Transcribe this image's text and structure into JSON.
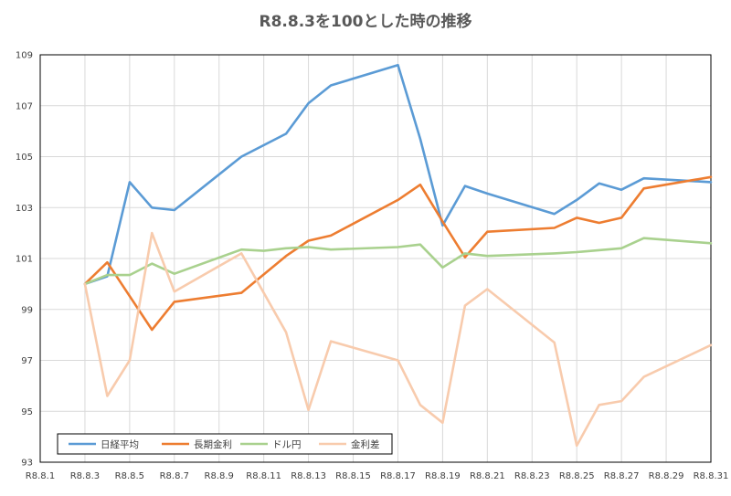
{
  "chart_data": {
    "type": "line",
    "title": "R8.8.3を100とした時の推移",
    "xlabel": "",
    "ylabel": "",
    "ylim": [
      93,
      109
    ],
    "yticks": [
      93,
      95,
      97,
      99,
      101,
      103,
      105,
      107,
      109
    ],
    "xlim": [
      1,
      31
    ],
    "xticks": [
      {
        "x": 1,
        "label": "R8.8.1"
      },
      {
        "x": 3,
        "label": "R8.8.3"
      },
      {
        "x": 5,
        "label": "R8.8.5"
      },
      {
        "x": 7,
        "label": "R8.8.7"
      },
      {
        "x": 9,
        "label": "R8.8.9"
      },
      {
        "x": 11,
        "label": "R8.8.11"
      },
      {
        "x": 13,
        "label": "R8.8.13"
      },
      {
        "x": 15,
        "label": "R8.8.15"
      },
      {
        "x": 17,
        "label": "R8.8.17"
      },
      {
        "x": 19,
        "label": "R8.8.19"
      },
      {
        "x": 21,
        "label": "R8.8.21"
      },
      {
        "x": 23,
        "label": "R8.8.23"
      },
      {
        "x": 25,
        "label": "R8.8.25"
      },
      {
        "x": 27,
        "label": "R8.8.27"
      },
      {
        "x": 29,
        "label": "R8.8.29"
      },
      {
        "x": 31,
        "label": "R8.8.31"
      }
    ],
    "grid": true,
    "legend_position": "bottom-left",
    "series": [
      {
        "name": "日経平均",
        "color": "#5b9bd5",
        "points": [
          [
            3,
            100
          ],
          [
            4,
            100.3
          ],
          [
            5,
            104
          ],
          [
            6,
            103
          ],
          [
            7,
            102.9
          ],
          [
            10,
            105
          ],
          [
            12,
            105.9
          ],
          [
            13,
            107.1
          ],
          [
            14,
            107.8
          ],
          [
            17,
            108.6
          ],
          [
            18,
            105.7
          ],
          [
            19,
            102.3
          ],
          [
            20,
            103.85
          ],
          [
            21,
            103.55
          ],
          [
            24,
            102.75
          ],
          [
            25,
            103.3
          ],
          [
            26,
            103.95
          ],
          [
            27,
            103.7
          ],
          [
            28,
            104.15
          ],
          [
            31,
            104
          ]
        ]
      },
      {
        "name": "長期金利",
        "color": "#ed7d31",
        "points": [
          [
            3,
            100
          ],
          [
            4,
            100.85
          ],
          [
            6,
            98.2
          ],
          [
            7,
            99.3
          ],
          [
            10,
            99.65
          ],
          [
            12,
            101.1
          ],
          [
            13,
            101.7
          ],
          [
            14,
            101.9
          ],
          [
            17,
            103.3
          ],
          [
            18,
            103.9
          ],
          [
            19,
            102.45
          ],
          [
            20,
            101.05
          ],
          [
            21,
            102.05
          ],
          [
            24,
            102.2
          ],
          [
            25,
            102.6
          ],
          [
            26,
            102.4
          ],
          [
            27,
            102.6
          ],
          [
            28,
            103.75
          ],
          [
            31,
            104.2
          ]
        ]
      },
      {
        "name": "ドル円",
        "color": "#a9d18e",
        "points": [
          [
            3,
            100
          ],
          [
            4,
            100.35
          ],
          [
            5,
            100.35
          ],
          [
            6,
            100.8
          ],
          [
            7,
            100.4
          ],
          [
            10,
            101.35
          ],
          [
            11,
            101.3
          ],
          [
            12,
            101.4
          ],
          [
            13,
            101.45
          ],
          [
            14,
            101.35
          ],
          [
            17,
            101.45
          ],
          [
            18,
            101.55
          ],
          [
            19,
            100.65
          ],
          [
            20,
            101.2
          ],
          [
            21,
            101.1
          ],
          [
            24,
            101.2
          ],
          [
            25,
            101.25
          ],
          [
            27,
            101.4
          ],
          [
            28,
            101.8
          ],
          [
            31,
            101.6
          ]
        ]
      },
      {
        "name": "金利差",
        "color": "#f8cbad",
        "points": [
          [
            3,
            100
          ],
          [
            4,
            95.6
          ],
          [
            5,
            97
          ],
          [
            6,
            102
          ],
          [
            7,
            99.7
          ],
          [
            10,
            101.2
          ],
          [
            12,
            98.1
          ],
          [
            13,
            95.05
          ],
          [
            14,
            97.75
          ],
          [
            17,
            97
          ],
          [
            18,
            95.25
          ],
          [
            19,
            94.55
          ],
          [
            20,
            99.15
          ],
          [
            21,
            99.8
          ],
          [
            24,
            97.7
          ],
          [
            25,
            93.65
          ],
          [
            26,
            95.25
          ],
          [
            27,
            95.4
          ],
          [
            28,
            96.35
          ],
          [
            31,
            97.6
          ]
        ]
      }
    ]
  }
}
